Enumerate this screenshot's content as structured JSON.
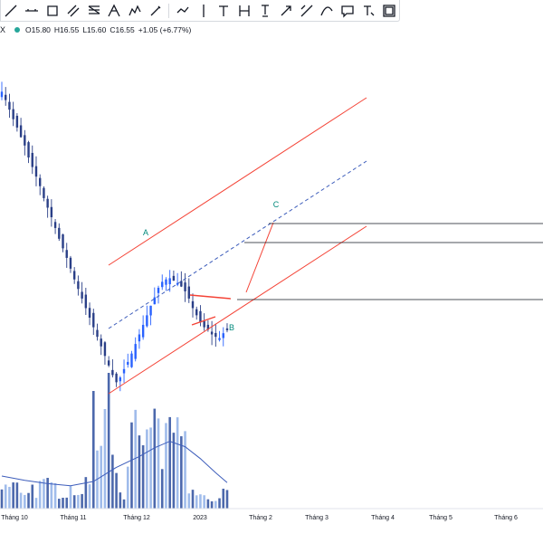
{
  "toolbar": {
    "tools": [
      "trend-line-tool",
      "horizontal-line-tool",
      "rectangle-tool",
      "parallel-channel-tool",
      "fib-retracement-tool",
      "pitchfork-tool",
      "pattern-tool",
      "brush-tool",
      "path-tool",
      "vertical-line-tool",
      "text-tool",
      "measure-tool",
      "note-tool",
      "arrow-tool",
      "long-position-tool",
      "curve-tool",
      "callout-tool",
      "text-note-tool",
      "frame-tool"
    ]
  },
  "legend": {
    "symbol_mark": "X",
    "open": "O15.80",
    "high": "H16.55",
    "low": "L15.60",
    "close": "C16.55",
    "change": "+1.05 (+6.77%)"
  },
  "colors": {
    "up_candle": "#2962ff",
    "down_candle": "#2a3f87",
    "volume_up": "#8fb0e8",
    "volume_down": "#2d4e9e",
    "volume_ma": "#3d5dbb",
    "channel": "#f44336",
    "midline": "#3d5dbb",
    "wave_label": "#00897b",
    "hline": "#131722"
  },
  "chart_data": {
    "type": "candlestick",
    "months": [
      "Tháng 10",
      "Tháng 11",
      "Tháng 12",
      "2023",
      "Tháng 2",
      "Tháng 3",
      "Tháng 4",
      "Tháng 5",
      "Tháng 6"
    ],
    "wave_labels": [
      "A",
      "B",
      "C"
    ],
    "price_path": [
      [
        0,
        36.5
      ],
      [
        1,
        35.8
      ],
      [
        2,
        35.0
      ],
      [
        3,
        34.2
      ],
      [
        4,
        33.5
      ],
      [
        5,
        32.7
      ],
      [
        6,
        32.0
      ],
      [
        7,
        31.0
      ],
      [
        8,
        30.2
      ],
      [
        9,
        29.4
      ],
      [
        10,
        28.6
      ],
      [
        11,
        27.6
      ],
      [
        12,
        26.8
      ],
      [
        13,
        26.0
      ],
      [
        14,
        25.1
      ],
      [
        15,
        24.2
      ],
      [
        16,
        23.4
      ],
      [
        17,
        22.6
      ],
      [
        18,
        21.7
      ],
      [
        19,
        20.8
      ],
      [
        20,
        20.0
      ],
      [
        21,
        19.2
      ],
      [
        22,
        18.4
      ],
      [
        23,
        17.6
      ],
      [
        24,
        16.8
      ],
      [
        25,
        16.0
      ],
      [
        26,
        15.2
      ],
      [
        27,
        14.4
      ],
      [
        28,
        13.6
      ],
      [
        29,
        12.8
      ],
      [
        30,
        12.2
      ],
      [
        31,
        12.6
      ],
      [
        32,
        13.3
      ],
      [
        33,
        13.9
      ],
      [
        34,
        14.6
      ],
      [
        35,
        15.4
      ],
      [
        36,
        16.2
      ],
      [
        37,
        17.0
      ],
      [
        38,
        17.8
      ],
      [
        39,
        18.6
      ],
      [
        40,
        19.3
      ],
      [
        41,
        20.1
      ],
      [
        42,
        20.6
      ],
      [
        43,
        20.8
      ],
      [
        44,
        20.9
      ],
      [
        45,
        20.7
      ],
      [
        46,
        20.5
      ],
      [
        47,
        20.2
      ],
      [
        48,
        19.8
      ],
      [
        49,
        19.2
      ],
      [
        50,
        18.4
      ],
      [
        51,
        17.8
      ],
      [
        52,
        17.2
      ],
      [
        53,
        16.8
      ],
      [
        54,
        16.6
      ],
      [
        55,
        16.2
      ],
      [
        56,
        16.0
      ],
      [
        57,
        15.9
      ],
      [
        58,
        16.3
      ],
      [
        59,
        16.55
      ]
    ],
    "volume_ma": [
      [
        0,
        3.0
      ],
      [
        6,
        2.6
      ],
      [
        12,
        2.3
      ],
      [
        18,
        2.1
      ],
      [
        24,
        2.5
      ],
      [
        30,
        3.8
      ],
      [
        36,
        4.8
      ],
      [
        40,
        5.6
      ],
      [
        44,
        6.2
      ],
      [
        48,
        5.7
      ],
      [
        52,
        4.6
      ],
      [
        56,
        3.3
      ],
      [
        59,
        2.4
      ]
    ]
  }
}
